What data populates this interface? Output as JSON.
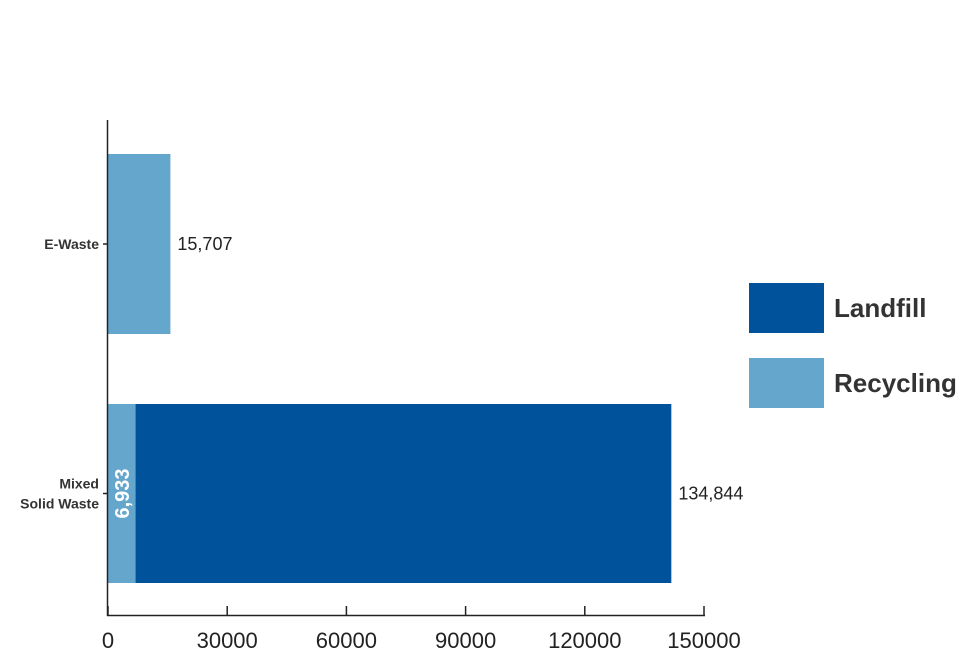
{
  "chart_data": {
    "type": "bar",
    "orientation": "horizontal",
    "stacked": true,
    "categories": [
      "Mixed Solid Waste",
      "E-Waste"
    ],
    "category_labels": [
      [
        "Mixed",
        "Solid Waste"
      ],
      [
        "E-Waste"
      ]
    ],
    "series": [
      {
        "name": "Recycling",
        "color": "#65a6cd",
        "values": [
          6933,
          15707
        ]
      },
      {
        "name": "Landfill",
        "color": "#00539b",
        "values": [
          134844,
          0
        ]
      }
    ],
    "data_labels": [
      {
        "category": "Mixed Solid Waste",
        "series": "Recycling",
        "text": "6,933",
        "position": "inside-rotated"
      },
      {
        "category": "Mixed Solid Waste",
        "series": "Landfill",
        "text": "134,844",
        "position": "outside-end"
      },
      {
        "category": "E-Waste",
        "series": "Recycling",
        "text": "15,707",
        "position": "outside-end"
      }
    ],
    "xlim": [
      0,
      150000
    ],
    "xticks": [
      0,
      30000,
      60000,
      90000,
      120000,
      150000
    ],
    "xtick_labels": [
      "0",
      "30000",
      "60000",
      "90000",
      "120000",
      "150000"
    ],
    "title": "",
    "xlabel": "",
    "ylabel": "",
    "grid": false,
    "legend_position": "right",
    "legend": [
      {
        "name": "Landfill",
        "color": "#00539b"
      },
      {
        "name": "Recycling",
        "color": "#65a6cd"
      }
    ]
  }
}
